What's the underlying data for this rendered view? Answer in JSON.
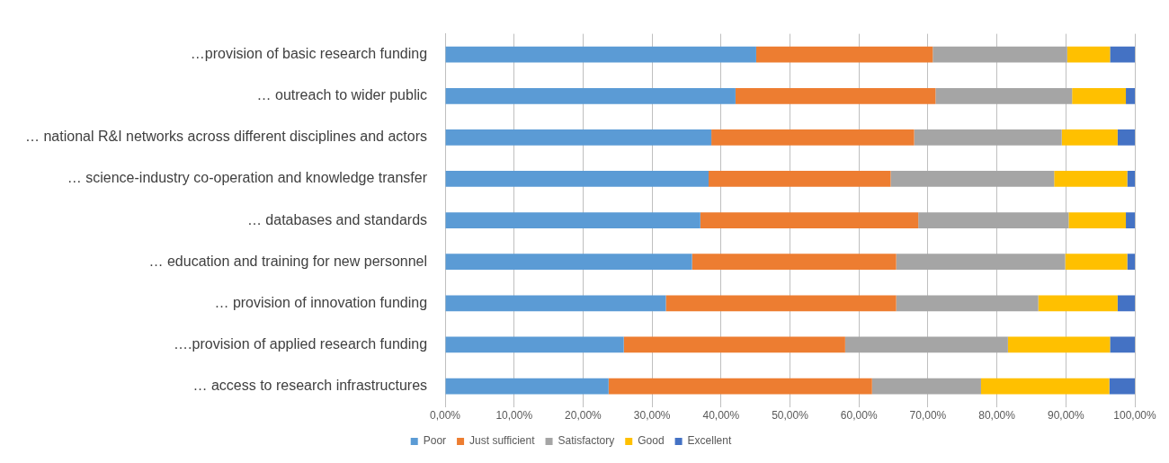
{
  "chart_data": {
    "type": "bar",
    "orientation": "horizontal",
    "stacked": true,
    "categories": [
      "…provision of basic research funding",
      "… outreach to wider public",
      "… national R&I networks across different disciplines and actors",
      "… science-industry co-operation and knowledge transfer",
      "… databases and standards",
      "… education and training for new personnel",
      "… provision of innovation funding",
      "….provision of applied research funding",
      "… access to research infrastructures"
    ],
    "series": [
      {
        "name": "Poor",
        "color": "#5b9bd5",
        "values": [
          45.1,
          42.1,
          38.6,
          38.2,
          37.0,
          35.8,
          32.0,
          25.9,
          23.7
        ]
      },
      {
        "name": "Just sufficient",
        "color": "#ed7d31",
        "values": [
          25.6,
          29.0,
          29.4,
          26.4,
          31.6,
          29.6,
          33.4,
          32.1,
          38.2
        ]
      },
      {
        "name": "Satisfactory",
        "color": "#a5a5a5",
        "values": [
          19.5,
          19.8,
          21.4,
          23.7,
          21.8,
          24.5,
          20.6,
          23.6,
          15.8
        ]
      },
      {
        "name": "Good",
        "color": "#ffc000",
        "values": [
          6.2,
          7.8,
          8.1,
          10.6,
          8.3,
          9.0,
          11.5,
          14.8,
          18.6
        ]
      },
      {
        "name": "Excellent",
        "color": "#4472c4",
        "values": [
          3.6,
          1.3,
          2.5,
          1.1,
          1.3,
          1.1,
          2.5,
          3.6,
          3.7
        ]
      }
    ],
    "xlim": [
      0,
      100
    ],
    "xticks": [
      {
        "value": 0,
        "label": "0,00%"
      },
      {
        "value": 10,
        "label": "10,00%"
      },
      {
        "value": 20,
        "label": "20,00%"
      },
      {
        "value": 30,
        "label": "30,00%"
      },
      {
        "value": 40,
        "label": "40,00%"
      },
      {
        "value": 50,
        "label": "50,00%"
      },
      {
        "value": 60,
        "label": "60,00%"
      },
      {
        "value": 70,
        "label": "70,00%"
      },
      {
        "value": 80,
        "label": "80,00%"
      },
      {
        "value": 90,
        "label": "90,00%"
      },
      {
        "value": 100,
        "label": "100,00%"
      }
    ],
    "grid": "x",
    "legend": "bottom"
  }
}
